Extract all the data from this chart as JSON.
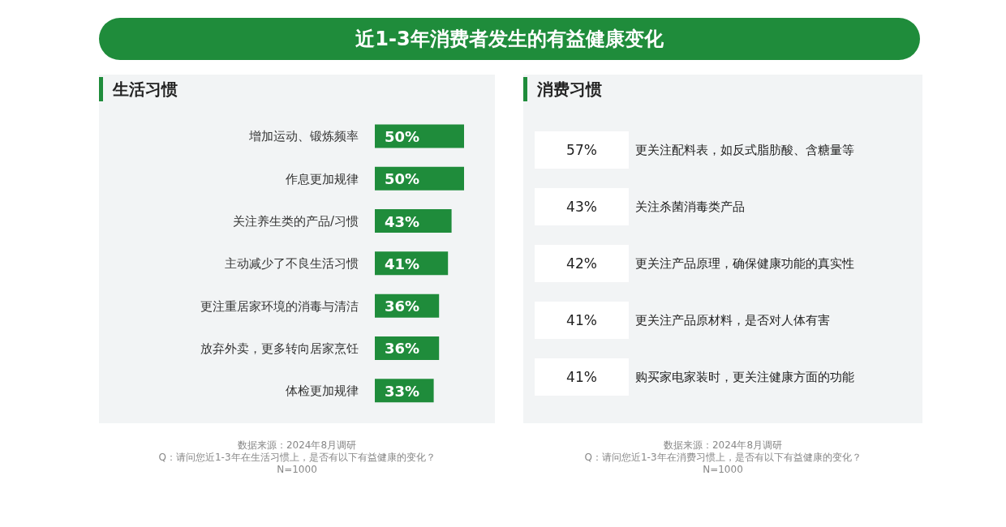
{
  "chart_data": [
    {
      "type": "bar",
      "orientation": "horizontal",
      "title": "近1-3年消费者发生的有益健康变化",
      "subtitle": "生活习惯",
      "categories": [
        "增加运动、锻炼频率",
        "作息更加规律",
        "关注养生类的产品/习惯",
        "主动减少了不良生活习惯",
        "更注重居家环境的消毒与清洁",
        "放弃外卖，更多转向居家烹饪",
        "体检更加规律"
      ],
      "values": [
        50,
        50,
        43,
        41,
        36,
        36,
        33
      ],
      "color": "#1f8c3b",
      "value_labels": [
        "50%",
        "50%",
        "43%",
        "41%",
        "36%",
        "36%",
        "33%"
      ],
      "annotations": [
        "数据来源：2024年8月调研",
        "Q：请问您近1-3年在生活习惯上，是否有以下有益健康的变化？",
        "N=1000"
      ]
    },
    {
      "type": "other",
      "title": "消费习惯",
      "categories": [
        "更关注配料表，如反式脂肪酸、含糖量等",
        "关注杀菌消毒类产品",
        "更关注产品原理，确保健康功能的真实性",
        "更关注产品原材料，是否对人体有害",
        "购买家电家装时，更关注健康方面的功能"
      ],
      "values": [
        57,
        43,
        42,
        41,
        41
      ],
      "value_labels": [
        "57%",
        "43%",
        "42%",
        "41%",
        "41%"
      ],
      "annotations": [
        "数据来源：2024年8月调研",
        "Q：请问您近1-3年在消费习惯上，是否有以下有益健康的变化？",
        "N=1000"
      ]
    }
  ]
}
